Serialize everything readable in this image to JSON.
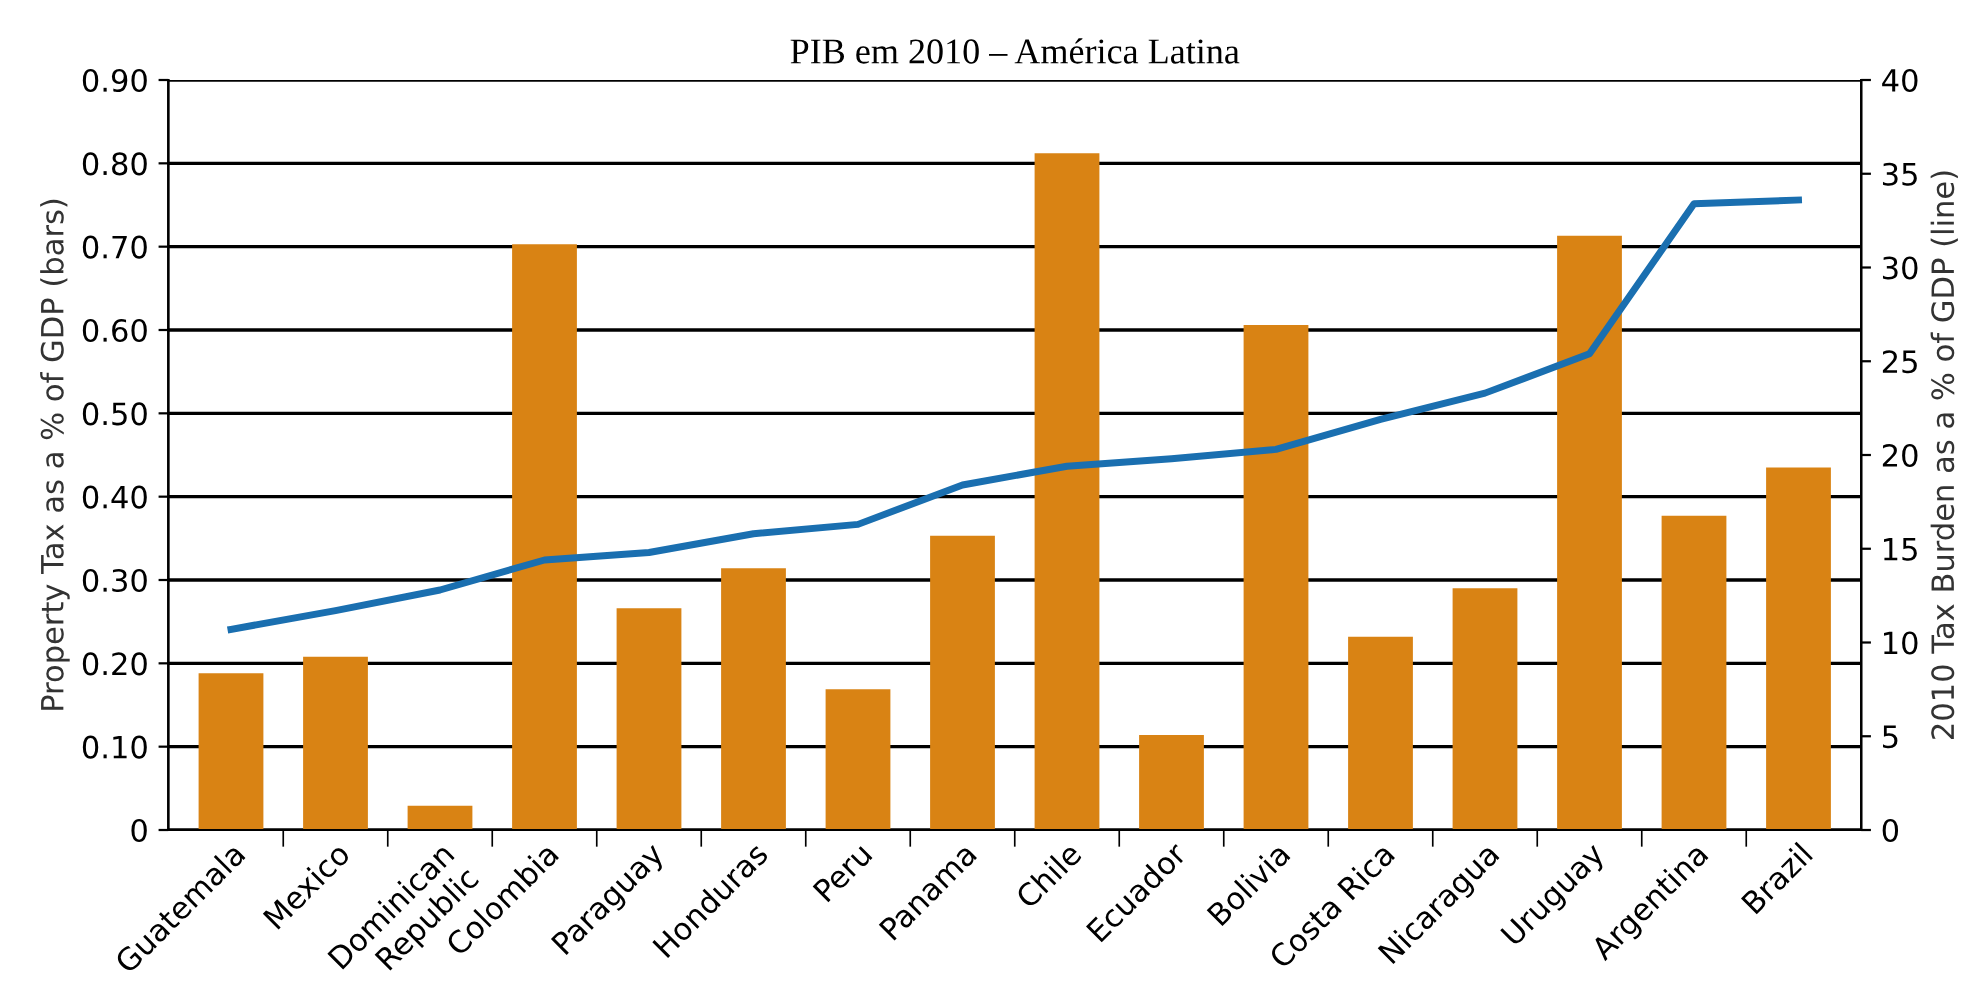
{
  "chart_data": {
    "type": "bar",
    "title": "PIB em 2010 – América Latina",
    "categories": [
      "Guatemala",
      "Mexico",
      "Dominican\nRepublic",
      "Colombia",
      "Paraguay",
      "Honduras",
      "Peru",
      "Panama",
      "Chile",
      "Ecuador",
      "Bolivia",
      "Costa Rica",
      "Nicaragua",
      "Uruguay",
      "Argentina",
      "Brazil"
    ],
    "series": [
      {
        "color": "#d98314",
        "values": [
          0.188,
          0.208,
          0.029,
          0.703,
          0.266,
          0.314,
          0.169,
          0.353,
          0.812,
          0.114,
          0.606,
          0.232,
          0.29,
          0.713,
          0.377,
          0.435
        ]
      },
      {
        "type": "line",
        "axis": "y2",
        "color": "#1a6fb0",
        "values": [
          10.7,
          11.7,
          12.8,
          14.4,
          14.8,
          15.8,
          16.3,
          18.4,
          19.4,
          19.8,
          20.3,
          21.9,
          23.3,
          25.4,
          33.4,
          33.6
        ]
      }
    ],
    "ylabel": "Property Tax as a % of GDP (bars)",
    "y2label": "2010 Tax Burden as a % of GDP (line)",
    "ylim": [
      0,
      0.9
    ],
    "yticks": [
      {
        "value": 0,
        "label": "0"
      },
      {
        "value": 0.1,
        "label": "0.10"
      },
      {
        "value": 0.2,
        "label": "0.20"
      },
      {
        "value": 0.3,
        "label": "0.30"
      },
      {
        "value": 0.4,
        "label": "0.40"
      },
      {
        "value": 0.5,
        "label": "0.50"
      },
      {
        "value": 0.6,
        "label": "0.60"
      },
      {
        "value": 0.7,
        "label": "0.70"
      },
      {
        "value": 0.8,
        "label": "0.80"
      },
      {
        "value": 0.9,
        "label": "0.90"
      }
    ],
    "y2lim": [
      0,
      40
    ],
    "y2ticks": [
      0,
      5,
      10,
      15,
      20,
      25,
      30,
      35,
      40
    ],
    "grid": "y",
    "marker": "none",
    "line_style": "solid"
  }
}
